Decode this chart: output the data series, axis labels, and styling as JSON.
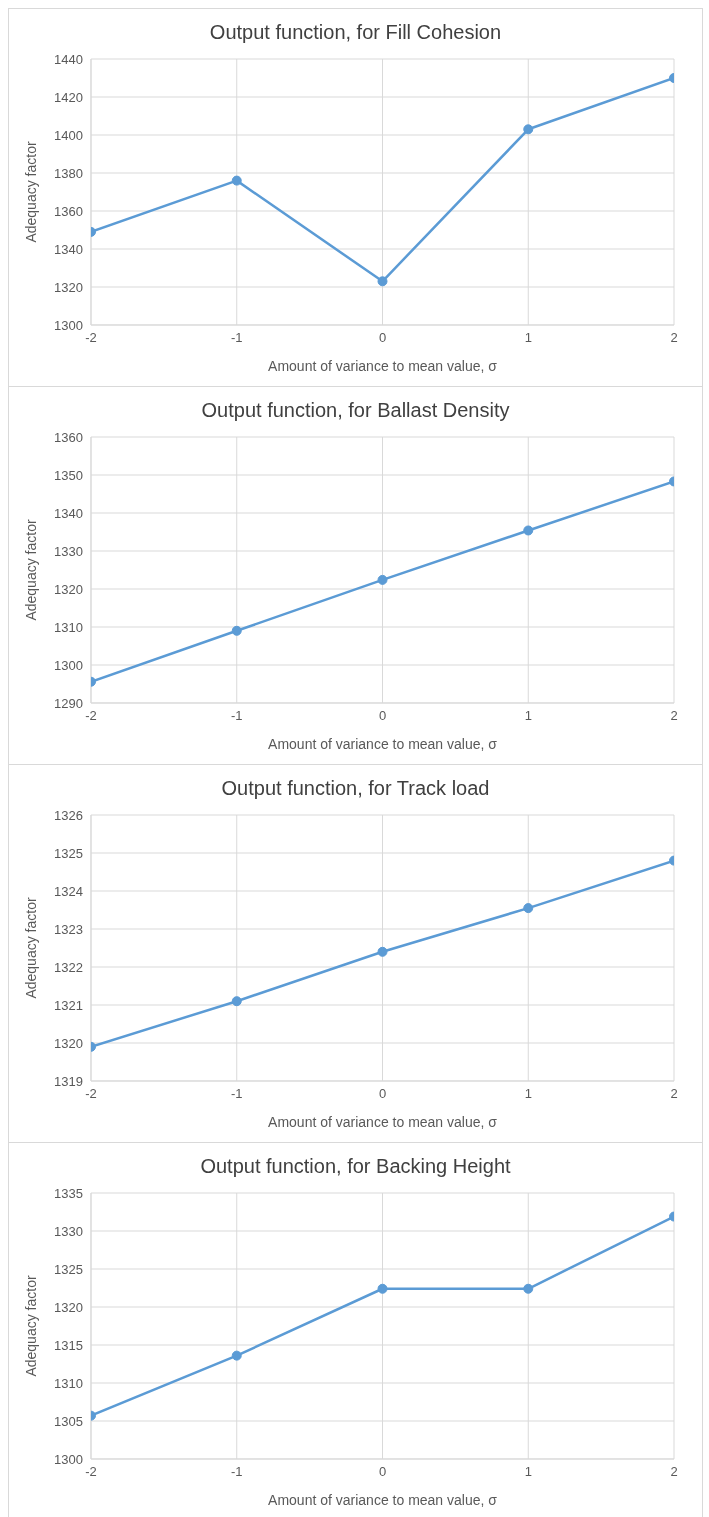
{
  "chart_data": [
    {
      "type": "line",
      "title": "Output function, for Fill Cohesion",
      "xlabel": "Amount of variance to mean value, σ",
      "ylabel": "Adequacy factor",
      "x": [
        -2,
        -1,
        0,
        1,
        2
      ],
      "series": [
        {
          "color": "#5b9bd5",
          "values": [
            1349,
            1376,
            1323,
            1403,
            1430
          ]
        }
      ],
      "xlim": [
        -2,
        2
      ],
      "xticks": [
        -2,
        -1,
        0,
        1,
        2
      ],
      "ylim": [
        1300,
        1440
      ],
      "yticks": [
        1300,
        1320,
        1340,
        1360,
        1380,
        1400,
        1420,
        1440
      ],
      "grid": true,
      "marker": "circle",
      "line_style": "solid",
      "legend": false
    },
    {
      "type": "line",
      "title": "Output function, for Ballast Density",
      "xlabel": "Amount of variance to mean value, σ",
      "ylabel": "Adequacy factor",
      "x": [
        -2,
        -1,
        0,
        1,
        2
      ],
      "series": [
        {
          "color": "#5b9bd5",
          "values": [
            1295.6,
            1309,
            1322.4,
            1335.4,
            1348.3
          ]
        }
      ],
      "xlim": [
        -2,
        2
      ],
      "xticks": [
        -2,
        -1,
        0,
        1,
        2
      ],
      "ylim": [
        1290,
        1360
      ],
      "yticks": [
        1290,
        1300,
        1310,
        1320,
        1330,
        1340,
        1350,
        1360
      ],
      "grid": true,
      "marker": "circle",
      "line_style": "solid",
      "legend": false
    },
    {
      "type": "line",
      "title": "Output function, for Track load",
      "xlabel": "Amount of variance to mean value, σ",
      "ylabel": "Adequacy factor",
      "x": [
        -2,
        -1,
        0,
        1,
        2
      ],
      "series": [
        {
          "color": "#5b9bd5",
          "values": [
            1319.9,
            1321.1,
            1322.4,
            1323.55,
            1324.8
          ]
        }
      ],
      "xlim": [
        -2,
        2
      ],
      "xticks": [
        -2,
        -1,
        0,
        1,
        2
      ],
      "ylim": [
        1319,
        1326
      ],
      "yticks": [
        1319,
        1320,
        1321,
        1322,
        1323,
        1324,
        1325,
        1326
      ],
      "grid": true,
      "marker": "circle",
      "line_style": "solid",
      "legend": false
    },
    {
      "type": "line",
      "title": "Output function, for Backing Height",
      "xlabel": "Amount of variance to mean value, σ",
      "ylabel": "Adequacy factor",
      "x": [
        -2,
        -1,
        0,
        1,
        2
      ],
      "series": [
        {
          "color": "#5b9bd5",
          "values": [
            1305.7,
            1313.6,
            1322.4,
            1322.4,
            1331.9
          ]
        }
      ],
      "xlim": [
        -2,
        2
      ],
      "xticks": [
        -2,
        -1,
        0,
        1,
        2
      ],
      "ylim": [
        1300,
        1335
      ],
      "yticks": [
        1300,
        1305,
        1310,
        1315,
        1320,
        1325,
        1330,
        1335
      ],
      "grid": true,
      "marker": "circle",
      "line_style": "solid",
      "legend": false
    }
  ]
}
